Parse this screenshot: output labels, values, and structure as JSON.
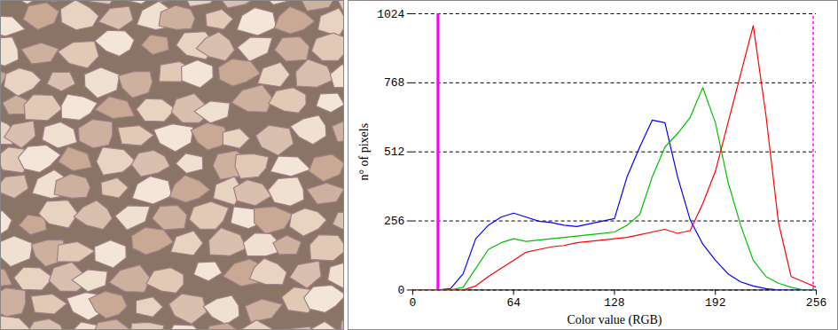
{
  "chart_data": {
    "type": "line",
    "x_label": "Color value (RGB)",
    "y_label": "n° of pixels",
    "x": [
      0,
      8,
      16,
      24,
      32,
      40,
      48,
      56,
      64,
      72,
      80,
      88,
      96,
      104,
      112,
      120,
      128,
      136,
      144,
      152,
      160,
      168,
      176,
      184,
      192,
      200,
      208,
      216,
      224,
      232,
      240,
      248,
      256
    ],
    "series": [
      {
        "color": "#0000ff",
        "values": [
          0,
          0,
          0,
          5,
          60,
          190,
          240,
          270,
          285,
          270,
          255,
          250,
          240,
          235,
          245,
          255,
          265,
          420,
          530,
          630,
          620,
          420,
          260,
          170,
          110,
          60,
          30,
          15,
          5,
          0,
          0,
          0,
          0
        ]
      },
      {
        "color": "#00c000",
        "values": [
          0,
          0,
          0,
          0,
          10,
          80,
          150,
          175,
          190,
          180,
          185,
          190,
          195,
          200,
          205,
          210,
          215,
          240,
          280,
          420,
          530,
          580,
          640,
          750,
          620,
          400,
          240,
          110,
          50,
          25,
          10,
          0,
          0
        ]
      },
      {
        "color": "#ff0000",
        "values": [
          0,
          0,
          0,
          0,
          0,
          15,
          50,
          80,
          110,
          140,
          150,
          160,
          165,
          175,
          180,
          185,
          190,
          195,
          205,
          215,
          225,
          210,
          220,
          320,
          440,
          620,
          800,
          980,
          650,
          250,
          50,
          30,
          10
        ]
      }
    ],
    "range_markers": [
      {
        "x": 16,
        "color": "#ff00ff",
        "line_style": "solid"
      },
      {
        "x": 254,
        "color": "#ff00ff",
        "line_style": "dashed"
      }
    ],
    "xlim": [
      0,
      256
    ],
    "xticks": [
      0,
      64,
      128,
      192,
      256
    ],
    "ylim": [
      0,
      1024
    ],
    "yticks": [
      0,
      256,
      512,
      768,
      1024
    ],
    "grid": true
  }
}
